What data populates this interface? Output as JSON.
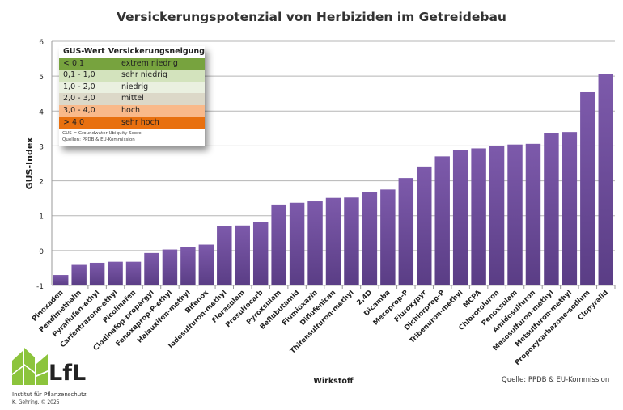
{
  "chart_data": {
    "type": "bar",
    "title": "Versickerungspotenzial von Herbiziden im Getreidebau",
    "xlabel": "Wirkstoff",
    "ylabel": "GUS-Index",
    "ylim": [
      -1,
      6
    ],
    "yticks": [
      "-1",
      "0",
      "1",
      "2",
      "3",
      "4",
      "5",
      "6"
    ],
    "grid": true,
    "bar_color": "#6b4a99",
    "categories": [
      "Pinoxaden",
      "Pendimethalin",
      "Pyraflufen-ethyl",
      "Carfentrazone-ethyl",
      "Picolinafen",
      "Clodinafop-propargyl",
      "Fenoxaprop-P-ethyl",
      "Halauxifen-methyl",
      "Bifenox",
      "Iodosulfuron-methyl",
      "Florasulam",
      "Prosulfocarb",
      "Pyroxsulam",
      "Beflubutamid",
      "Flumioxazin",
      "Diflufenican",
      "Thifensulfuron-methyl",
      "2,4D",
      "Dicamba",
      "Mecoprop-P",
      "Fluroxypyr",
      "Dichlorprop-P",
      "Tribenuron-methyl",
      "MCPA",
      "Chlorotoluron",
      "Penoxsulam",
      "Amidosulfuron",
      "Mesosulfuron-methyl",
      "Metsulfuron-methyl",
      "Propoxycarbazone-sodium",
      "Clopyralid"
    ],
    "values": [
      -0.7,
      -0.41,
      -0.35,
      -0.32,
      -0.32,
      -0.07,
      0.03,
      0.1,
      0.17,
      0.7,
      0.72,
      0.83,
      1.32,
      1.37,
      1.41,
      1.51,
      1.52,
      1.68,
      1.75,
      2.08,
      2.41,
      2.7,
      2.88,
      2.93,
      3.01,
      3.04,
      3.06,
      3.37,
      3.4,
      4.54,
      5.05
    ]
  },
  "legend_table": {
    "headers": [
      "GUS-Wert",
      "Versickerungsneigung"
    ],
    "rows": [
      {
        "range": "< 0,1",
        "label": "extrem niedrig",
        "color": "#77a33e"
      },
      {
        "range": "0,1 - 1,0",
        "label": "sehr niedrig",
        "color": "#d3e3bd"
      },
      {
        "range": "1,0 - 2,0",
        "label": "niedrig",
        "color": "#eaf0e0"
      },
      {
        "range": "2,0 - 3,0",
        "label": "mittel",
        "color": "#dcd8c8"
      },
      {
        "range": "3,0 - 4,0",
        "label": "hoch",
        "color": "#f9b98a"
      },
      {
        "range": "> 4,0",
        "label": "sehr hoch",
        "color": "#e8700f"
      }
    ],
    "note1": "GUS = Groundwater Ubiquity Score,",
    "note2": "Quellen: PPDB & EU-Kommission"
  },
  "source": "Quelle: PPDB & EU-Kommission",
  "logo": {
    "text": "LfL",
    "institute": "Institut für Pflanzenschutz",
    "author": "K. Gehring, © 2025",
    "color": "#8cc43c"
  }
}
